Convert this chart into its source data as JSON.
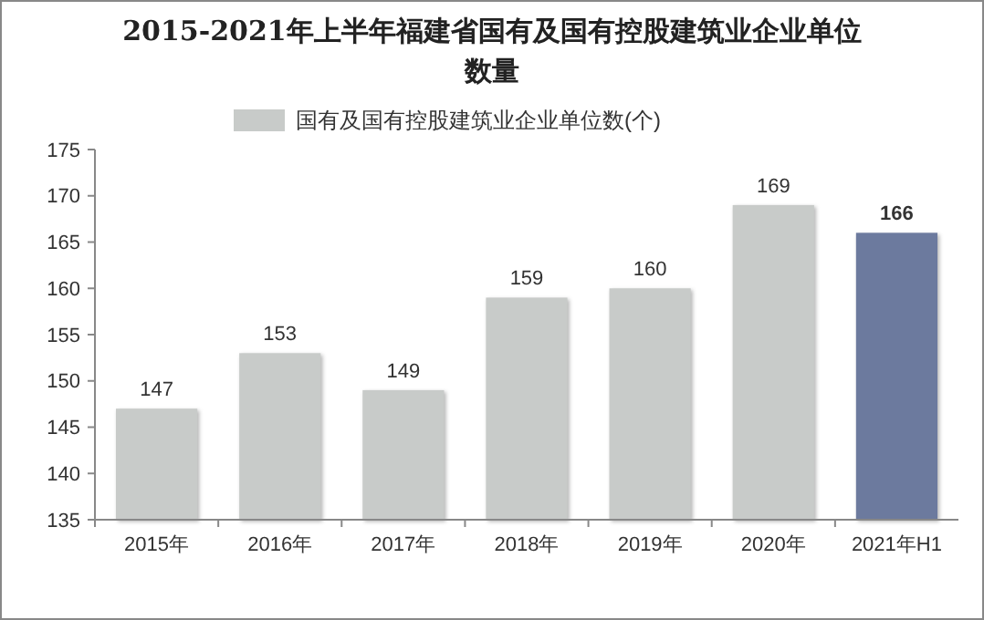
{
  "chart_data": {
    "type": "bar",
    "title": "2015-2021年上半年福建省国有及国有控股建筑业企业单位数量",
    "categories": [
      "2015年",
      "2016年",
      "2017年",
      "2018年",
      "2019年",
      "2020年",
      "2021年H1"
    ],
    "series": [
      {
        "name": "国有及国有控股建筑业企业单位数(个)",
        "color": "#c8cbc9",
        "colors": [
          "#c8cbc9",
          "#c8cbc9",
          "#c8cbc9",
          "#c8cbc9",
          "#c8cbc9",
          "#c8cbc9",
          "#6c7a9e"
        ],
        "values": [
          147,
          153,
          149,
          159,
          160,
          169,
          166
        ]
      }
    ],
    "ylim": [
      135,
      175
    ],
    "yticks": [
      135,
      140,
      145,
      150,
      155,
      160,
      165,
      170,
      175
    ],
    "grid": false,
    "legend": "top",
    "data_labels": true
  }
}
